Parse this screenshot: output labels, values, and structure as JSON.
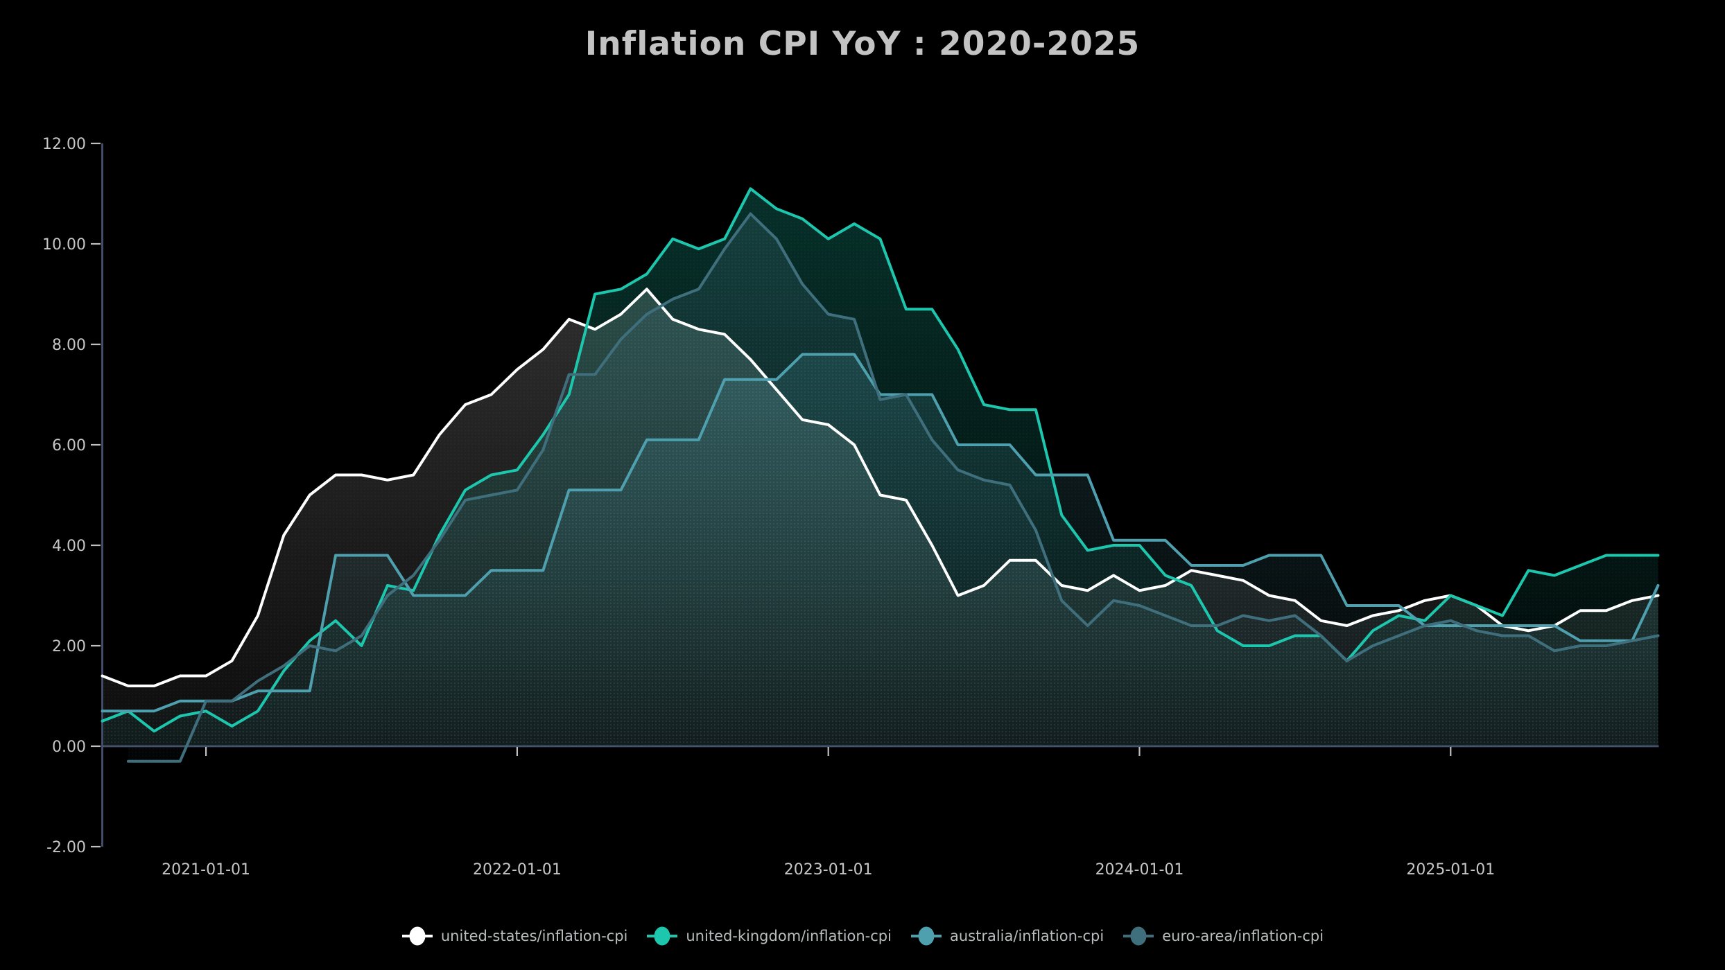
{
  "chart_data": {
    "type": "line",
    "title": "Inflation CPI YoY : 2020-2025",
    "frequency": "monthly",
    "x_start_month": "2020-09",
    "x_end_month": "2025-09",
    "background_color": "#000000",
    "axis_color": "#45526c",
    "tick_color": "#c0c0c0",
    "text_color": "#c6c6c6",
    "legend_position": "bottom",
    "grid": "off",
    "baseline": 0,
    "y_axis": {
      "min": -2,
      "max": 12,
      "step": 2,
      "ticks": [
        {
          "value": 12,
          "label": "12.00"
        },
        {
          "value": 10,
          "label": "10.00"
        },
        {
          "value": 8,
          "label": "8.00"
        },
        {
          "value": 6,
          "label": "6.00"
        },
        {
          "value": 4,
          "label": "4.00"
        },
        {
          "value": 2,
          "label": "2.00"
        },
        {
          "value": 0,
          "label": "0.00"
        },
        {
          "value": -2,
          "label": "-2.00"
        }
      ]
    },
    "x_axis": {
      "ticks": [
        {
          "label": "2021-01-01",
          "month_index": 4
        },
        {
          "label": "2022-01-01",
          "month_index": 16
        },
        {
          "label": "2023-01-01",
          "month_index": 28
        },
        {
          "label": "2024-01-01",
          "month_index": 40
        },
        {
          "label": "2025-01-01",
          "month_index": 52
        }
      ]
    },
    "series": [
      {
        "name": "united-states/inflation-cpi",
        "color": "#ffffff",
        "start_index": 0,
        "values": [
          1.4,
          1.2,
          1.2,
          1.4,
          1.4,
          1.7,
          2.6,
          4.2,
          5.0,
          5.4,
          5.4,
          5.3,
          5.4,
          6.2,
          6.8,
          7.0,
          7.5,
          7.9,
          8.5,
          8.3,
          8.6,
          9.1,
          8.5,
          8.3,
          8.2,
          7.7,
          7.1,
          6.5,
          6.4,
          6.0,
          5.0,
          4.9,
          4.0,
          3.0,
          3.2,
          3.7,
          3.7,
          3.2,
          3.1,
          3.4,
          3.1,
          3.2,
          3.5,
          3.4,
          3.3,
          3.0,
          2.9,
          2.5,
          2.4,
          2.6,
          2.7,
          2.9,
          3.0,
          2.8,
          2.4,
          2.3,
          2.4,
          2.7,
          2.7,
          2.9,
          3.0
        ]
      },
      {
        "name": "united-kingdom/inflation-cpi",
        "color": "#1dc7ae",
        "start_index": 0,
        "values": [
          0.5,
          0.7,
          0.3,
          0.6,
          0.7,
          0.4,
          0.7,
          1.5,
          2.1,
          2.5,
          2.0,
          3.2,
          3.1,
          4.2,
          5.1,
          5.4,
          5.5,
          6.2,
          7.0,
          9.0,
          9.1,
          9.4,
          10.1,
          9.9,
          10.1,
          11.1,
          10.7,
          10.5,
          10.1,
          10.4,
          10.1,
          8.7,
          8.7,
          7.9,
          6.8,
          6.7,
          6.7,
          4.6,
          3.9,
          4.0,
          4.0,
          3.4,
          3.2,
          2.3,
          2.0,
          2.0,
          2.2,
          2.2,
          1.7,
          2.3,
          2.6,
          2.5,
          3.0,
          2.8,
          2.6,
          3.5,
          3.4,
          3.6,
          3.8,
          3.8,
          3.8
        ]
      },
      {
        "name": "australia/inflation-cpi",
        "color": "#4fa0af",
        "start_index": 0,
        "note": "quarterly series shown as monthly steps",
        "values": [
          0.7,
          0.7,
          0.7,
          0.9,
          0.9,
          0.9,
          1.1,
          1.1,
          1.1,
          3.8,
          3.8,
          3.8,
          3.0,
          3.0,
          3.0,
          3.5,
          3.5,
          3.5,
          5.1,
          5.1,
          5.1,
          6.1,
          6.1,
          6.1,
          7.3,
          7.3,
          7.3,
          7.8,
          7.8,
          7.8,
          7.0,
          7.0,
          7.0,
          6.0,
          6.0,
          6.0,
          5.4,
          5.4,
          5.4,
          4.1,
          4.1,
          4.1,
          3.6,
          3.6,
          3.6,
          3.8,
          3.8,
          3.8,
          2.8,
          2.8,
          2.8,
          2.4,
          2.4,
          2.4,
          2.4,
          2.4,
          2.4,
          2.1,
          2.1,
          2.1,
          3.2
        ]
      },
      {
        "name": "euro-area/inflation-cpi",
        "color": "#3f6f7d",
        "start_index": 1,
        "values": [
          -0.3,
          -0.3,
          -0.3,
          0.9,
          0.9,
          1.3,
          1.6,
          2.0,
          1.9,
          2.2,
          3.0,
          3.4,
          4.1,
          4.9,
          5.0,
          5.1,
          5.9,
          7.4,
          7.4,
          8.1,
          8.6,
          8.9,
          9.1,
          9.9,
          10.6,
          10.1,
          9.2,
          8.6,
          8.5,
          6.9,
          7.0,
          6.1,
          5.5,
          5.3,
          5.2,
          4.3,
          2.9,
          2.4,
          2.9,
          2.8,
          2.6,
          2.4,
          2.4,
          2.6,
          2.5,
          2.6,
          2.2,
          1.7,
          2.0,
          2.2,
          2.4,
          2.5,
          2.3,
          2.2,
          2.2,
          1.9,
          2.0,
          2.0,
          2.1,
          2.2
        ]
      }
    ]
  }
}
